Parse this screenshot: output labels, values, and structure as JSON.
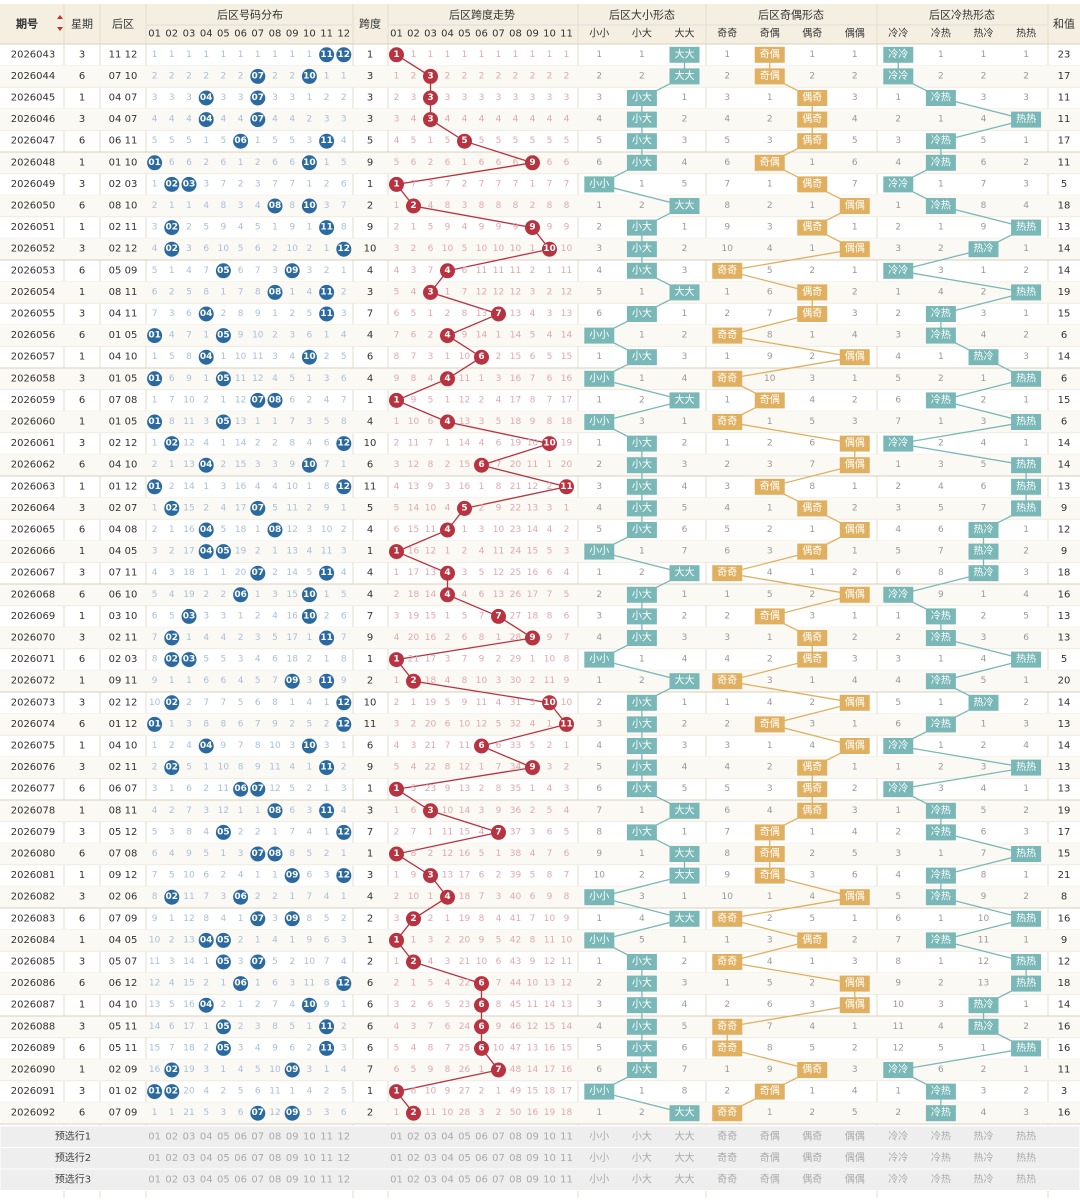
{
  "table": {
    "headers": {
      "period": "期号",
      "weekday": "星期",
      "back": "后区",
      "dist": "后区号码分布",
      "span": "跨度",
      "trend": "后区跨度走势",
      "size": "后区大小形态",
      "parity": "后区奇偶形态",
      "hotcold": "后区冷热形态",
      "sum": "和值"
    },
    "numbers": [
      "01",
      "02",
      "03",
      "04",
      "05",
      "06",
      "07",
      "08",
      "09",
      "10",
      "11",
      "12"
    ],
    "spans": [
      "01",
      "02",
      "03",
      "04",
      "05",
      "06",
      "07",
      "08",
      "09",
      "10",
      "11"
    ],
    "size_cols": [
      "小小",
      "小大",
      "大大"
    ],
    "parity_cols": [
      "奇奇",
      "奇偶",
      "偶奇",
      "偶偶"
    ],
    "hc_cols": [
      "冷冷",
      "冷热",
      "热冷",
      "热热"
    ],
    "footer": [
      {
        "label": "预选行1"
      },
      {
        "label": "预选行2"
      },
      {
        "label": "预选行3"
      }
    ]
  },
  "colors": {
    "blue": "#2b6aa0",
    "red": "#b83240",
    "teal": "#7ab8b8",
    "gold": "#e0b060",
    "header": "#f5efe2",
    "line": "#e8dfcc"
  },
  "chart_data": {
    "type": "table",
    "rows": [
      {
        "p": "2026043",
        "w": 3,
        "a": 11,
        "b": 12
      },
      {
        "p": "2026044",
        "w": 6,
        "a": 7,
        "b": 10
      },
      {
        "p": "2026045",
        "w": 1,
        "a": 4,
        "b": 7
      },
      {
        "p": "2026046",
        "w": 3,
        "a": 4,
        "b": 7
      },
      {
        "p": "2026047",
        "w": 6,
        "a": 6,
        "b": 11
      },
      {
        "p": "2026048",
        "w": 1,
        "a": 1,
        "b": 10
      },
      {
        "p": "2026049",
        "w": 3,
        "a": 2,
        "b": 3
      },
      {
        "p": "2026050",
        "w": 6,
        "a": 8,
        "b": 10
      },
      {
        "p": "2026051",
        "w": 1,
        "a": 2,
        "b": 11
      },
      {
        "p": "2026052",
        "w": 3,
        "a": 2,
        "b": 12
      },
      {
        "p": "2026053",
        "w": 6,
        "a": 5,
        "b": 9
      },
      {
        "p": "2026054",
        "w": 1,
        "a": 8,
        "b": 11
      },
      {
        "p": "2026055",
        "w": 3,
        "a": 4,
        "b": 11
      },
      {
        "p": "2026056",
        "w": 6,
        "a": 1,
        "b": 5
      },
      {
        "p": "2026057",
        "w": 1,
        "a": 4,
        "b": 10
      },
      {
        "p": "2026058",
        "w": 3,
        "a": 1,
        "b": 5
      },
      {
        "p": "2026059",
        "w": 6,
        "a": 7,
        "b": 8
      },
      {
        "p": "2026060",
        "w": 1,
        "a": 1,
        "b": 5
      },
      {
        "p": "2026061",
        "w": 3,
        "a": 2,
        "b": 12
      },
      {
        "p": "2026062",
        "w": 6,
        "a": 4,
        "b": 10
      },
      {
        "p": "2026063",
        "w": 1,
        "a": 1,
        "b": 12
      },
      {
        "p": "2026064",
        "w": 3,
        "a": 2,
        "b": 7
      },
      {
        "p": "2026065",
        "w": 6,
        "a": 4,
        "b": 8
      },
      {
        "p": "2026066",
        "w": 1,
        "a": 4,
        "b": 5
      },
      {
        "p": "2026067",
        "w": 3,
        "a": 7,
        "b": 11
      },
      {
        "p": "2026068",
        "w": 6,
        "a": 6,
        "b": 10
      },
      {
        "p": "2026069",
        "w": 1,
        "a": 3,
        "b": 10
      },
      {
        "p": "2026070",
        "w": 3,
        "a": 2,
        "b": 11
      },
      {
        "p": "2026071",
        "w": 6,
        "a": 2,
        "b": 3
      },
      {
        "p": "2026072",
        "w": 1,
        "a": 9,
        "b": 11
      },
      {
        "p": "2026073",
        "w": 3,
        "a": 2,
        "b": 12
      },
      {
        "p": "2026074",
        "w": 6,
        "a": 1,
        "b": 12
      },
      {
        "p": "2026075",
        "w": 1,
        "a": 4,
        "b": 10
      },
      {
        "p": "2026076",
        "w": 3,
        "a": 2,
        "b": 11
      },
      {
        "p": "2026077",
        "w": 6,
        "a": 6,
        "b": 7
      },
      {
        "p": "2026078",
        "w": 1,
        "a": 8,
        "b": 11
      },
      {
        "p": "2026079",
        "w": 3,
        "a": 5,
        "b": 12
      },
      {
        "p": "2026080",
        "w": 6,
        "a": 7,
        "b": 8
      },
      {
        "p": "2026081",
        "w": 1,
        "a": 9,
        "b": 12
      },
      {
        "p": "2026082",
        "w": 3,
        "a": 2,
        "b": 6
      },
      {
        "p": "2026083",
        "w": 6,
        "a": 7,
        "b": 9
      },
      {
        "p": "2026084",
        "w": 1,
        "a": 4,
        "b": 5
      },
      {
        "p": "2026085",
        "w": 3,
        "a": 5,
        "b": 7
      },
      {
        "p": "2026086",
        "w": 6,
        "a": 6,
        "b": 12
      },
      {
        "p": "2026087",
        "w": 1,
        "a": 4,
        "b": 10
      },
      {
        "p": "2026088",
        "w": 3,
        "a": 5,
        "b": 11
      },
      {
        "p": "2026089",
        "w": 6,
        "a": 5,
        "b": 11
      },
      {
        "p": "2026090",
        "w": 1,
        "a": 2,
        "b": 9
      },
      {
        "p": "2026091",
        "w": 3,
        "a": 1,
        "b": 2
      },
      {
        "p": "2026092",
        "w": 6,
        "a": 7,
        "b": 9
      }
    ]
  }
}
